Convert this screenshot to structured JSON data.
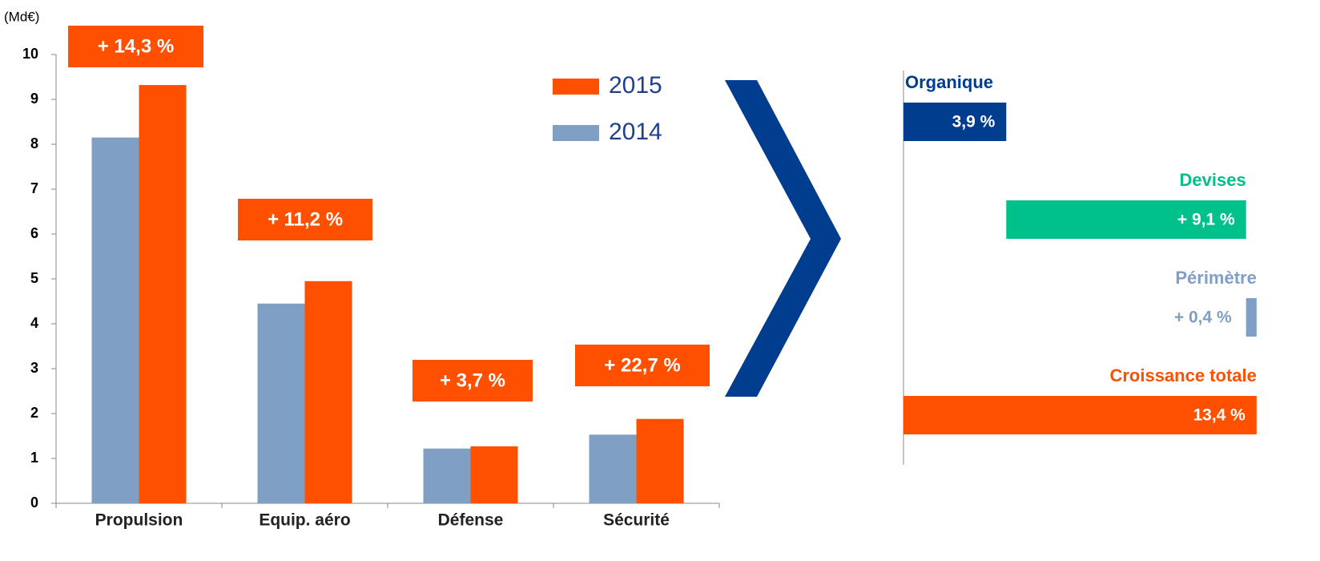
{
  "chart_data": [
    {
      "type": "bar",
      "y_label": "(Md€)",
      "categories": [
        "Propulsion",
        "Equip. aéro",
        "Défense",
        "Sécurité"
      ],
      "series": [
        {
          "name": "2014",
          "color": "#7f9fc4",
          "values": [
            8.15,
            4.45,
            1.22,
            1.53
          ]
        },
        {
          "name": "2015",
          "color": "#ff5000",
          "values": [
            9.32,
            4.95,
            1.27,
            1.88
          ]
        }
      ],
      "legend_order": [
        1,
        0
      ],
      "annotations": [
        "+ 14,3 %",
        "+ 11,2 %",
        "+ 3,7 %",
        "+ 22,7 %"
      ],
      "annotation_color": "#ff5000",
      "ylim": [
        0,
        10
      ],
      "yticks": [
        0,
        1,
        2,
        3,
        4,
        5,
        6,
        7,
        8,
        9,
        10
      ],
      "grid": false
    },
    {
      "type": "waterfall",
      "orientation": "horizontal",
      "categories": [
        "Organique",
        "Devises",
        "Périmètre",
        "Croissance totale"
      ],
      "values": [
        3.9,
        9.1,
        0.4,
        13.4
      ],
      "value_labels": [
        "3,9 %",
        "+ 9,1 %",
        "+ 0,4 %",
        "13,4 %"
      ],
      "measures": [
        "relative",
        "relative",
        "relative",
        "total"
      ],
      "colors": [
        "#003d8f",
        "#00c08b",
        "#7f9fc4",
        "#ff5000"
      ]
    }
  ]
}
